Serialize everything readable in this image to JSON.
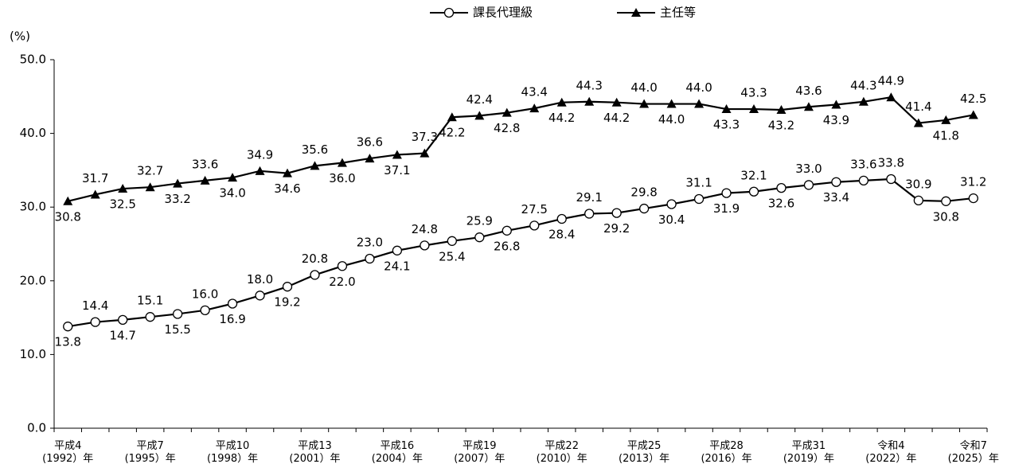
{
  "chart_data": {
    "type": "line",
    "y_unit": "(%)",
    "categories": [
      [
        "平成4",
        "(1992）年"
      ],
      null,
      null,
      [
        "平成7",
        "(1995）年"
      ],
      null,
      null,
      [
        "平成10",
        "(1998）年"
      ],
      null,
      null,
      [
        "平成13",
        "(2001）年"
      ],
      null,
      null,
      [
        "平成16",
        "(2004）年"
      ],
      null,
      null,
      [
        "平成19",
        "(2007）年"
      ],
      null,
      null,
      [
        "平成22",
        "(2010）年"
      ],
      null,
      null,
      [
        "平成25",
        "(2013）年"
      ],
      null,
      null,
      [
        "平成28",
        "(2016）年"
      ],
      null,
      null,
      [
        "平成31",
        "(2019）年"
      ],
      null,
      null,
      [
        "令和4",
        "(2022）年"
      ],
      null,
      null,
      [
        "令和7",
        "(2025）年"
      ]
    ],
    "series": [
      {
        "name": "課長代理級",
        "marker": "circle",
        "color": "#000000",
        "values": [
          13.8,
          14.4,
          14.7,
          15.1,
          15.5,
          16.0,
          16.9,
          18.0,
          19.2,
          20.8,
          22.0,
          23.0,
          24.1,
          24.8,
          25.4,
          25.9,
          26.8,
          27.5,
          28.4,
          29.1,
          29.2,
          29.8,
          30.4,
          31.1,
          31.9,
          32.1,
          32.6,
          33.0,
          33.4,
          33.6,
          33.8,
          30.9,
          30.8,
          31.2
        ],
        "value_labels": [
          "13.8",
          "14.4",
          "14.7",
          "15.1",
          "15.5",
          "16.0",
          "16.9",
          "18.0",
          "19.2",
          "20.8",
          "22.0",
          "23.0",
          "24.1",
          "24.8",
          "25.4",
          "25.9",
          "26.8",
          "27.5",
          "28.4",
          "29.1",
          "29.2",
          "29.8",
          "30.4",
          "31.1",
          "31.9",
          "32.1",
          "32.6",
          "33.0",
          "33.4",
          "33.6",
          "33.8",
          "30.9",
          "30.8",
          "31.2"
        ]
      },
      {
        "name": "主任等",
        "marker": "triangle",
        "color": "#000000",
        "values": [
          30.8,
          31.7,
          32.5,
          32.7,
          33.2,
          33.6,
          34.0,
          34.9,
          34.6,
          35.6,
          36.0,
          36.6,
          37.1,
          37.3,
          42.2,
          42.4,
          42.8,
          43.4,
          44.2,
          44.3,
          44.2,
          44.0,
          44.0,
          44.0,
          43.3,
          43.3,
          43.2,
          43.6,
          43.9,
          44.3,
          44.9,
          41.4,
          41.8,
          42.5
        ],
        "value_labels": [
          "30.8",
          "31.7",
          "32.5",
          "32.7",
          "33.2",
          "33.6",
          "34.0",
          "34.9",
          "34.6",
          "35.6",
          "36.0",
          "36.6",
          "37.1",
          "37.3",
          "42.2",
          "42.4",
          "42.8",
          "43.4",
          "44.2",
          "44.3",
          "44.2",
          "44.0",
          "44.0",
          "44.0",
          "43.3",
          "43.3",
          "43.2",
          "43.6",
          "43.9",
          "44.3",
          "44.9",
          "41.4",
          "41.8",
          "42.5"
        ]
      }
    ],
    "ylim": [
      0,
      50
    ],
    "yticks": [
      {
        "value": 0,
        "label": "0.0"
      },
      {
        "value": 10,
        "label": "10.0"
      },
      {
        "value": 20,
        "label": "20.0"
      },
      {
        "value": 30,
        "label": "30.0"
      },
      {
        "value": 40,
        "label": "40.0"
      },
      {
        "value": 50,
        "label": "50.0"
      }
    ],
    "grid": false,
    "legend": "top"
  }
}
